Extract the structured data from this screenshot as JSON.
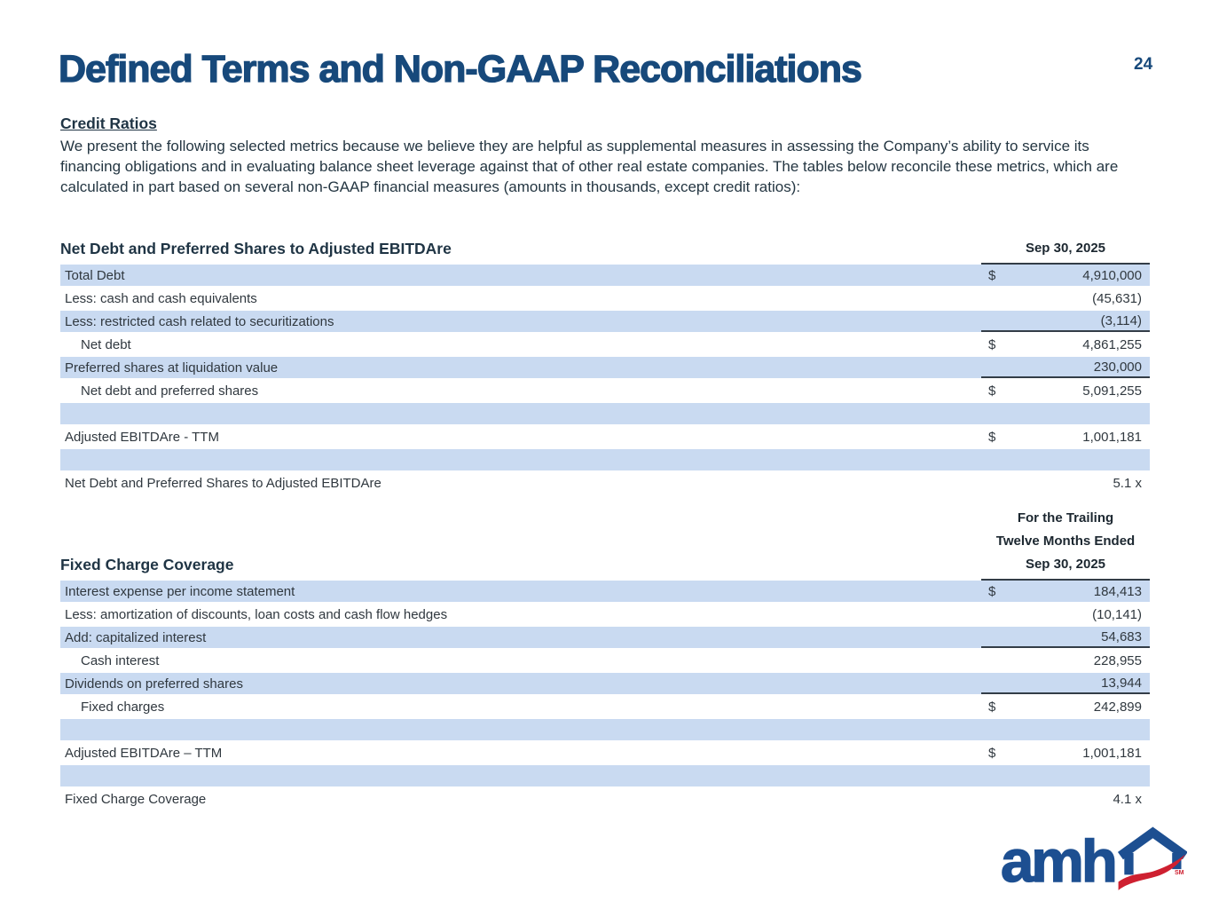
{
  "page": {
    "title": "Defined Terms and Non-GAAP Reconciliations",
    "page_number": "24"
  },
  "intro": {
    "heading": "Credit Ratios",
    "body": "We present the following selected metrics because we believe they are helpful as supplemental measures in assessing the Company’s ability to service its financing obligations and in evaluating balance sheet leverage against that of other real estate companies. The tables below reconcile these metrics, which are calculated in part based on several non-GAAP financial measures (amounts in thousands, except credit ratios):"
  },
  "colors": {
    "accent_navy": "#17497B",
    "heading_slate": "#1F3444",
    "row_blue": "#C9DAF1",
    "rule_dark": "#333D47",
    "logo_blue": "#1D4F91",
    "logo_red": "#CE2030"
  },
  "table1": {
    "title": "Net Debt and Preferred Shares to Adjusted EBITDAre",
    "column_header": "Sep 30, 2025",
    "rows": [
      {
        "label": "Total Debt",
        "dollar": "$",
        "value": "4,910,000",
        "shade": true
      },
      {
        "label": "Less: cash and cash equivalents",
        "value": "(45,631)"
      },
      {
        "label": "Less: restricted cash related to securitizations",
        "value": "(3,114)",
        "shade": true,
        "rule": true
      },
      {
        "label": "Net debt",
        "dollar": "$",
        "value": "4,861,255",
        "indent": true
      },
      {
        "label": "Preferred shares at liquidation value",
        "value": "230,000",
        "shade": true,
        "rule": true
      },
      {
        "label": "Net debt and preferred shares",
        "dollar": "$",
        "value": "5,091,255",
        "indent": true
      },
      {
        "shade": true,
        "empty": true
      },
      {
        "label": "Adjusted EBITDAre - TTM",
        "dollar": "$",
        "value": "1,001,181"
      },
      {
        "shade": true,
        "empty": true
      },
      {
        "label": "Net Debt and Preferred Shares to Adjusted EBITDAre",
        "value": "5.1 x"
      }
    ]
  },
  "table2": {
    "title": "Fixed Charge Coverage",
    "column_header_lines": [
      "For the Trailing",
      "Twelve Months Ended",
      "Sep 30, 2025"
    ],
    "rows": [
      {
        "label": "Interest expense per income statement",
        "dollar": "$",
        "value": "184,413",
        "shade": true
      },
      {
        "label": "Less: amortization of discounts, loan costs and cash flow hedges",
        "value": "(10,141)"
      },
      {
        "label": "Add: capitalized interest",
        "value": "54,683",
        "shade": true,
        "rule": true
      },
      {
        "label": "Cash interest",
        "value": "228,955",
        "indent": true
      },
      {
        "label": "Dividends on preferred shares",
        "value": "13,944",
        "shade": true,
        "rule": true
      },
      {
        "label": "Fixed charges",
        "dollar": "$",
        "value": "242,899",
        "indent": true
      },
      {
        "shade": true,
        "empty": true
      },
      {
        "label": "Adjusted EBITDAre – TTM",
        "dollar": "$",
        "value": "1,001,181"
      },
      {
        "shade": true,
        "empty": true
      },
      {
        "label": "Fixed Charge Coverage",
        "value": "4.1 x"
      }
    ]
  },
  "logo": {
    "text": "amh",
    "sm": "SM"
  }
}
